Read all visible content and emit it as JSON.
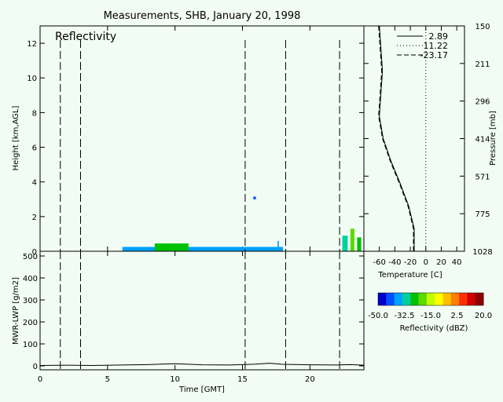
{
  "figure": {
    "title": "Measurements, SHB, January 20, 1998",
    "panel_label": "Reflectivity",
    "background": "#f1fcf4"
  },
  "chart_data": [
    {
      "id": "reflectivity",
      "type": "heatmap",
      "ylabel": "Height [km,AGL]",
      "xlim": [
        0,
        24
      ],
      "ylim": [
        0,
        13
      ],
      "yticks": [
        0,
        2,
        4,
        6,
        8,
        10,
        12
      ],
      "dashed_lines_x": [
        1.5,
        3.0,
        15.2,
        18.2,
        22.2
      ],
      "echoes": [
        {
          "x0": 6.1,
          "x1": 18.0,
          "y0": 0.0,
          "y1": 0.25,
          "dbz": -35
        },
        {
          "x0": 8.5,
          "x1": 11.0,
          "y0": 0.0,
          "y1": 0.45,
          "dbz": -28
        },
        {
          "x0": 15.8,
          "x1": 16.0,
          "y0": 3.0,
          "y1": 3.15,
          "dbz": -40
        },
        {
          "x0": 17.6,
          "x1": 17.7,
          "y0": 0.0,
          "y1": 0.6,
          "dbz": -38
        },
        {
          "x0": 22.4,
          "x1": 22.8,
          "y0": 0.0,
          "y1": 0.9,
          "dbz": -30
        },
        {
          "x0": 23.0,
          "x1": 23.3,
          "y0": 0.0,
          "y1": 1.3,
          "dbz": -22
        },
        {
          "x0": 23.5,
          "x1": 23.8,
          "y0": 0.0,
          "y1": 0.8,
          "dbz": -28
        }
      ]
    },
    {
      "id": "sounding",
      "type": "line",
      "xlabel": "Temperature [C]",
      "ylabel": "Pressure [mb]",
      "xlim": [
        -80,
        50
      ],
      "xticks": [
        -60,
        -40,
        -20,
        0,
        20,
        40
      ],
      "pressure_ticks": [
        150,
        211,
        296,
        414,
        571,
        775,
        1028
      ],
      "legend_position": "top-right",
      "series": [
        {
          "name": "2.89",
          "dash": "solid",
          "x": [
            -60,
            -58,
            -56,
            -58,
            -60,
            -55,
            -45,
            -33,
            -22,
            -15,
            -15
          ],
          "y": [
            0,
            1,
            2,
            3,
            4,
            5,
            6,
            7,
            8,
            9,
            10
          ]
        },
        {
          "name": "11.22",
          "dash": "dotted",
          "x": [
            0,
            0
          ],
          "y": [
            0,
            10
          ]
        },
        {
          "name": "-23.17",
          "dash": "dashed",
          "x": [
            -61,
            -59,
            -57,
            -59,
            -61,
            -56,
            -46,
            -34,
            -23,
            -16,
            -16
          ],
          "y": [
            0,
            1,
            2,
            3,
            4,
            5,
            6,
            7,
            8,
            9,
            10
          ]
        }
      ]
    },
    {
      "id": "lwp",
      "type": "line",
      "xlabel": "Time [GMT]",
      "ylabel": "MWR-LWP [g/m2]",
      "xlim": [
        0,
        24
      ],
      "ylim": [
        0,
        500
      ],
      "xticks": [
        0,
        5,
        10,
        15,
        20
      ],
      "yticks": [
        0,
        100,
        200,
        300,
        400,
        500
      ],
      "dashed_lines_x": [
        1.5,
        3.0,
        15.2,
        18.2,
        22.2
      ],
      "series": [
        {
          "name": "",
          "x": [
            0,
            2,
            4,
            6,
            8,
            9,
            10,
            12,
            14,
            15,
            16,
            17,
            18,
            20,
            22,
            23,
            24
          ],
          "y": [
            2,
            3,
            2,
            4,
            6,
            8,
            10,
            5,
            4,
            6,
            8,
            12,
            7,
            5,
            4,
            6,
            3
          ]
        }
      ]
    }
  ],
  "colorbar": {
    "label": "Reflectivity (dBZ)",
    "min": -50,
    "max": 20,
    "tick_labels": [
      "-50.0",
      "-32.5",
      "-15.0",
      "2.5",
      "20.0"
    ],
    "colors": [
      "#0000c8",
      "#0050ff",
      "#00a0ff",
      "#00d0a0",
      "#00c000",
      "#60d800",
      "#c0ff00",
      "#ffff00",
      "#ffc000",
      "#ff8000",
      "#ff3000",
      "#d00000",
      "#900000"
    ]
  }
}
